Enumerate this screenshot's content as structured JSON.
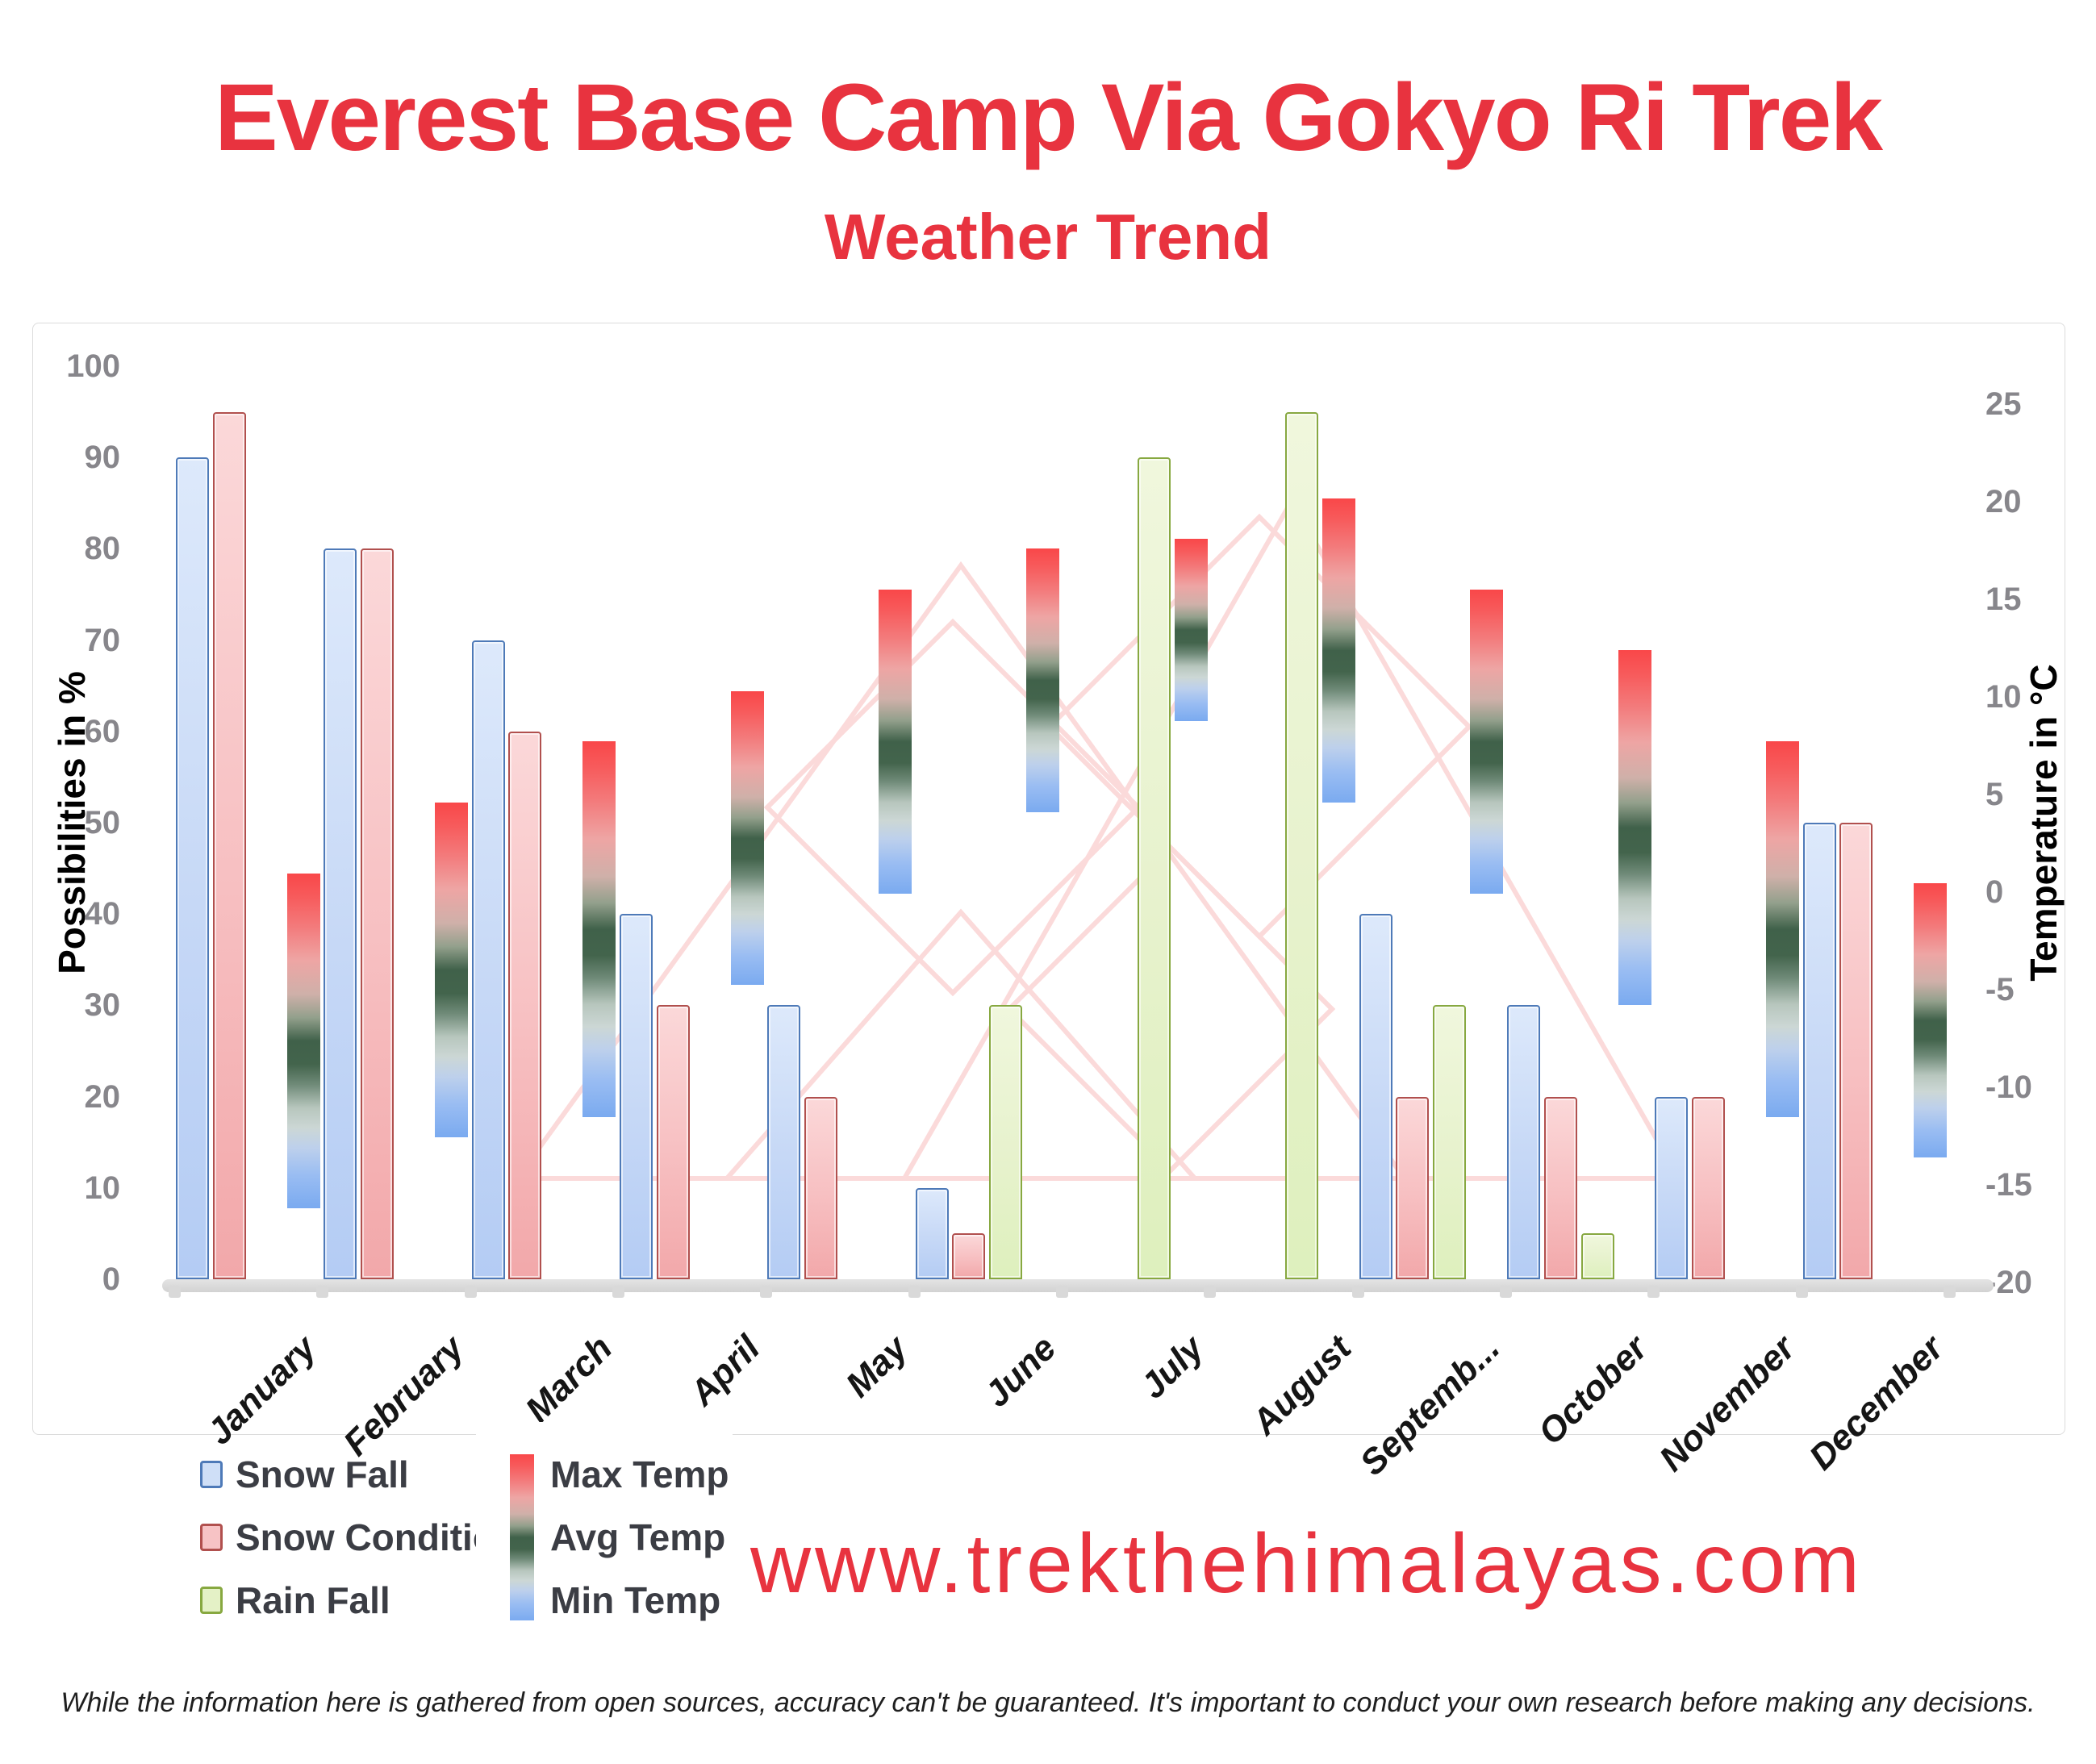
{
  "header": {
    "title": "Everest Base Camp Via Gokyo Ri Trek",
    "subtitle": "Weather Trend"
  },
  "footer": {
    "website": "www.trekthehimalayas.com",
    "disclaimer": "While the information here is gathered from open sources, accuracy can't be guaranteed. It's important to conduct your own research before making any decisions."
  },
  "colors": {
    "accent_red": "#e8333f",
    "snow_fall_fill": "#cfdff7",
    "snow_fall_border": "#4e7ab8",
    "snow_condition_fill": "#f7c3c5",
    "snow_condition_border": "#b1504e",
    "rain_fall_fill": "#e4f1c6",
    "rain_fall_border": "#87a840",
    "max_temp": "#f94749",
    "avg_temp": "#40614a",
    "min_temp": "#7aaaf0",
    "watermark_pink": "#fbdada",
    "axis_tick_gray": "#87868b"
  },
  "chart_data": {
    "type": "bar",
    "title": "Weather Trend",
    "categories": [
      "January",
      "February",
      "March",
      "April",
      "May",
      "June",
      "July",
      "August",
      "September",
      "October",
      "November",
      "December"
    ],
    "category_labels": [
      "January",
      "February",
      "March",
      "April",
      "May",
      "June",
      "July",
      "August",
      "Septemb...",
      "October",
      "November",
      "December"
    ],
    "left_axis": {
      "label": "Possibilities in %",
      "range": [
        0,
        100
      ],
      "ticks": [
        0,
        10,
        20,
        30,
        40,
        50,
        60,
        70,
        80,
        90,
        100
      ]
    },
    "right_axis": {
      "label": "Temperature in °C",
      "range": [
        -20,
        25
      ],
      "ticks": [
        -20,
        -15,
        -10,
        -5,
        0,
        5,
        10,
        15,
        20,
        25
      ]
    },
    "grid": false,
    "legend_position": "bottom-left",
    "series": [
      {
        "name": "Snow Fall",
        "unit": "%",
        "values": [
          90,
          80,
          70,
          40,
          30,
          10,
          0,
          0,
          40,
          30,
          20,
          50
        ]
      },
      {
        "name": "Snow Condition",
        "unit": "%",
        "values": [
          95,
          80,
          60,
          30,
          20,
          5,
          0,
          0,
          20,
          20,
          20,
          50
        ]
      },
      {
        "name": "Rain Fall",
        "unit": "%",
        "values": [
          0,
          0,
          0,
          0,
          0,
          30,
          90,
          95,
          30,
          5,
          0,
          0
        ]
      },
      {
        "name": "Max Temp",
        "unit": "°C",
        "values": [
          0,
          3.5,
          6.5,
          9,
          14,
          16,
          16.5,
          18.5,
          14,
          11,
          6.5,
          -0.5
        ]
      },
      {
        "name": "Avg Temp",
        "unit": "°C",
        "values": [
          -8,
          -5,
          -3,
          2,
          6.5,
          9.5,
          12,
          11,
          6.5,
          2,
          -3,
          -7
        ]
      },
      {
        "name": "Min Temp",
        "unit": "°C",
        "values": [
          -16.5,
          -13,
          -12,
          -5.5,
          -1,
          3,
          7.5,
          3.5,
          -1,
          -6.5,
          -12,
          -14
        ]
      }
    ],
    "legend": {
      "left": [
        {
          "key": "sf",
          "label": "Snow Fall"
        },
        {
          "key": "sc",
          "label": "Snow Condition"
        },
        {
          "key": "rf",
          "label": "Rain Fall"
        }
      ],
      "right": [
        {
          "label": "Max Temp"
        },
        {
          "label": "Avg Temp"
        },
        {
          "label": "Min Temp"
        }
      ]
    }
  }
}
